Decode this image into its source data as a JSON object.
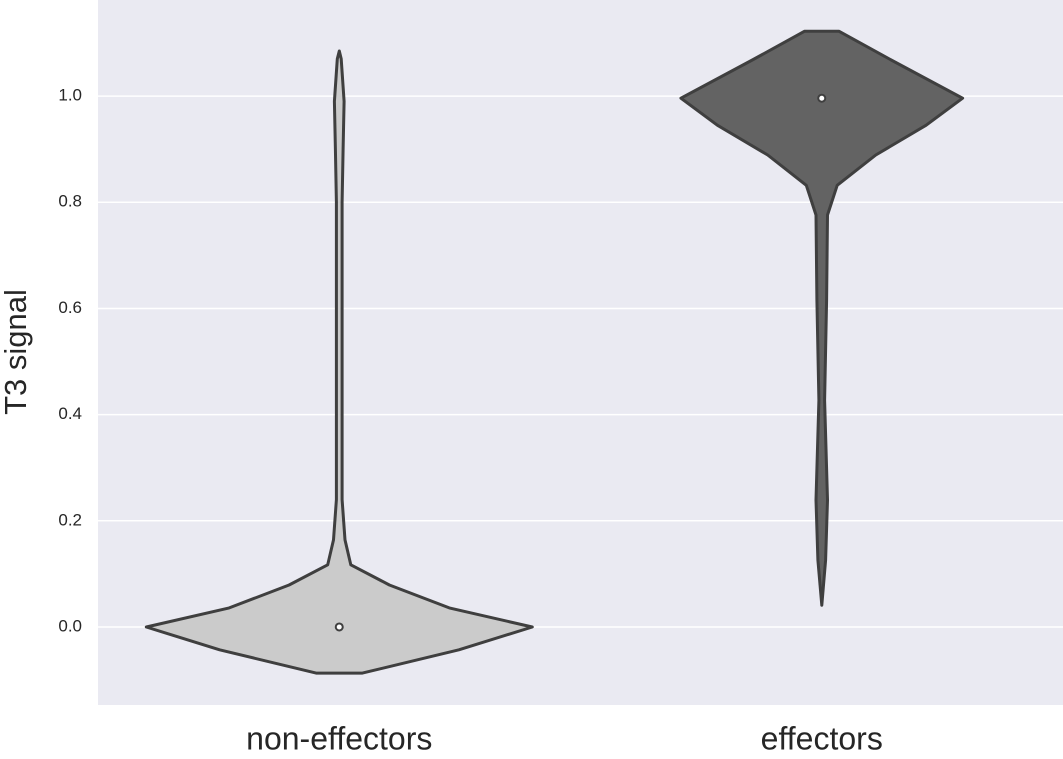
{
  "chart_data": {
    "type": "violin",
    "y_label": "T3 signal",
    "categories": [
      "non-effectors",
      "effectors"
    ],
    "violins": [
      {
        "color": "#cbcbcb",
        "y": [
          -0.087,
          -0.043,
          0.0,
          0.036,
          0.079,
          0.117,
          0.164,
          0.24,
          0.43,
          0.62,
          0.8,
          0.9,
          0.99,
          1.07,
          1.085
        ],
        "density": [
          0.12,
          0.62,
          1.0,
          0.57,
          0.26,
          0.06,
          0.03,
          0.015,
          0.015,
          0.015,
          0.015,
          0.02,
          0.025,
          0.01,
          0
        ],
        "median": 0.0
      },
      {
        "color": "#636363",
        "y": [
          0.041,
          0.126,
          0.239,
          0.427,
          0.616,
          0.776,
          0.832,
          0.889,
          0.945,
          0.996,
          1.068,
          1.122
        ],
        "density": [
          0,
          0.02,
          0.03,
          0.015,
          0.025,
          0.03,
          0.08,
          0.28,
          0.54,
          0.73,
          0.36,
          0.09
        ],
        "median": 0.996
      }
    ],
    "ylim": [
      -0.147,
      1.181
    ],
    "yticks": [
      {
        "value": 0,
        "label": "0.0"
      },
      0.2,
      0.4,
      0.6,
      0.8,
      {
        "value": 1,
        "label": "1.0"
      }
    ],
    "grid": true
  }
}
